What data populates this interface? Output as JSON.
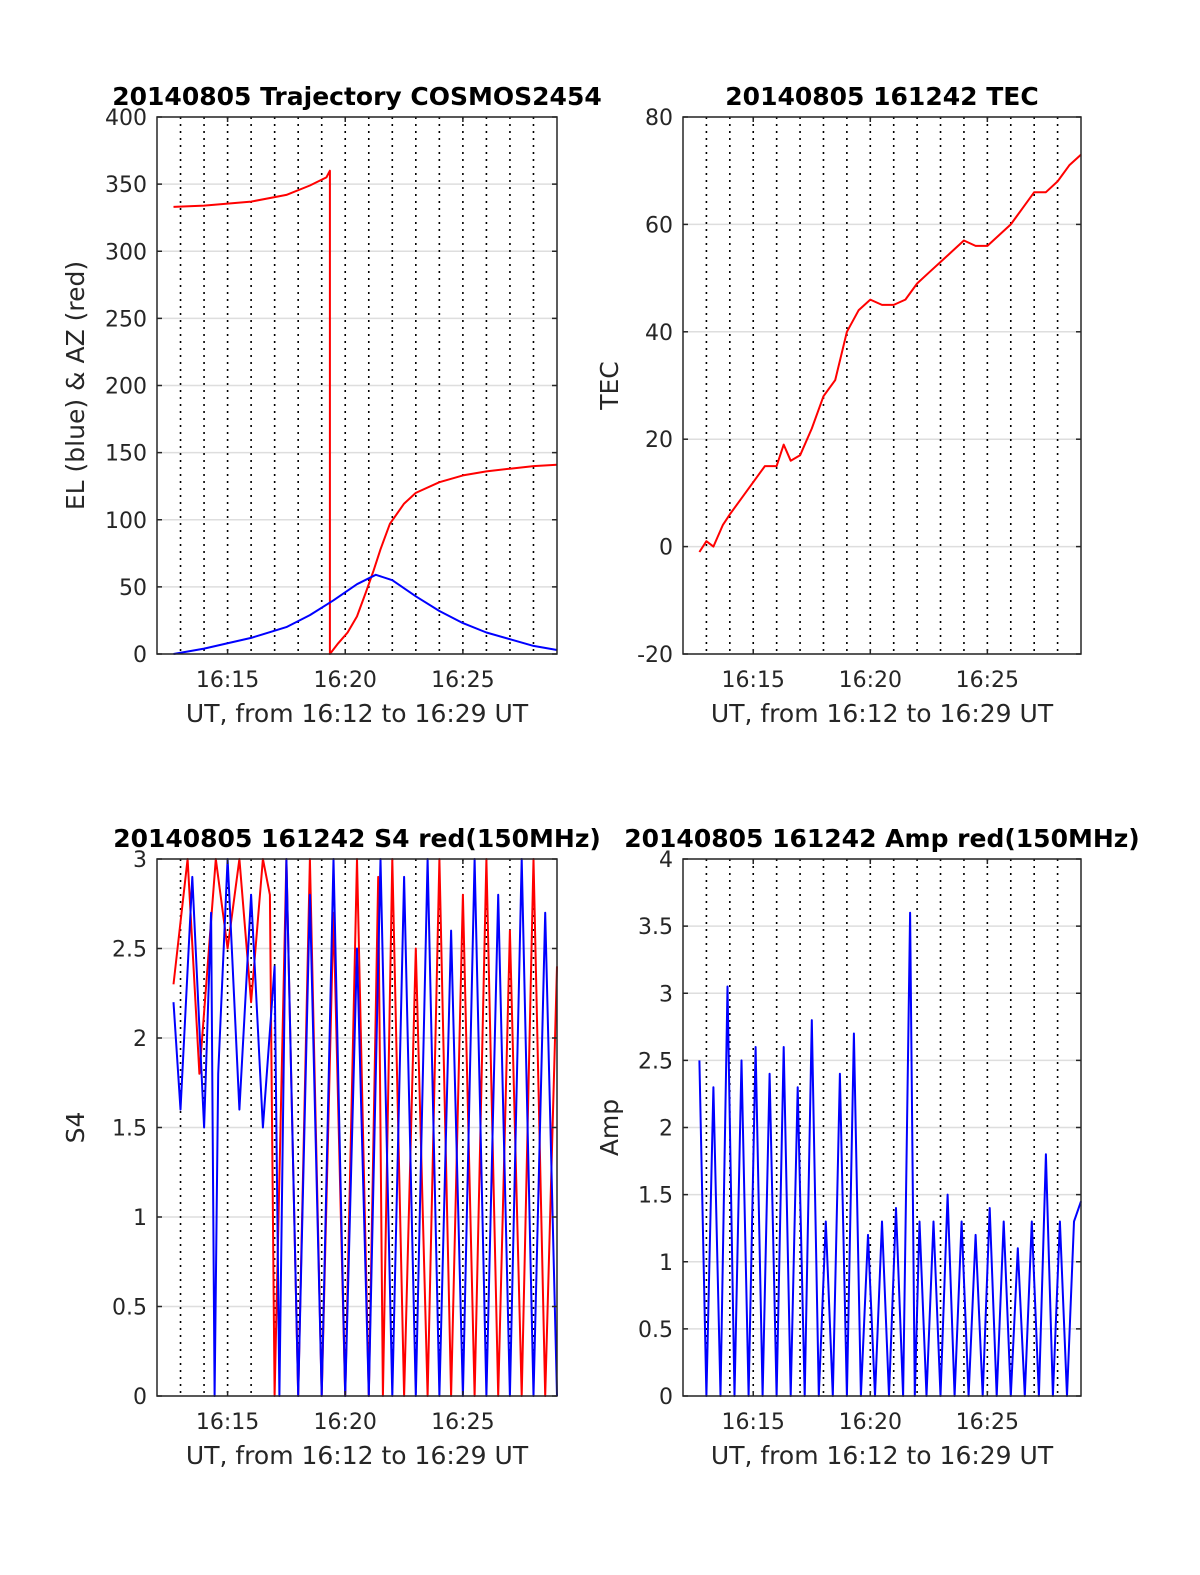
{
  "chart_data": [
    {
      "type": "line",
      "title": "20140805 Trajectory COSMOS2454",
      "xlabel": "UT, from 16:12 to 16:29 UT",
      "ylabel": "EL (blue) & AZ (red)",
      "xlim": [
        16.12,
        16.29
      ],
      "ylim": [
        0,
        400
      ],
      "x_ticks": [
        16.15,
        16.2,
        16.25
      ],
      "x_tick_labels": [
        "16:15",
        "16:20",
        "16:25"
      ],
      "y_ticks": [
        0,
        50,
        100,
        150,
        200,
        250,
        300,
        350,
        400
      ],
      "y_tick_labels": [
        "0",
        "50",
        "100",
        "150",
        "200",
        "250",
        "300",
        "350",
        "400"
      ],
      "grid": true,
      "series": [
        {
          "color": "#ff0000",
          "x": [
            16.127,
            16.14,
            16.16,
            16.175,
            16.185,
            16.192,
            16.1935,
            16.1935,
            16.197,
            16.201,
            16.205,
            16.209,
            16.212,
            16.215,
            16.219,
            16.225,
            16.23,
            16.24,
            16.25,
            16.26,
            16.27,
            16.28,
            16.29
          ],
          "y": [
            333,
            334,
            337,
            342,
            349,
            355,
            360,
            0,
            8,
            16,
            28,
            47,
            62,
            78,
            97,
            112,
            120,
            128,
            133,
            136,
            138,
            140,
            141
          ]
        },
        {
          "color": "#0000ff",
          "x": [
            16.127,
            16.14,
            16.16,
            16.175,
            16.185,
            16.195,
            16.205,
            16.213,
            16.22,
            16.23,
            16.24,
            16.25,
            16.26,
            16.27,
            16.28,
            16.29
          ],
          "y": [
            0,
            4,
            12,
            20,
            29,
            40,
            52,
            59,
            55,
            43,
            32,
            23,
            16,
            11,
            6,
            3
          ]
        }
      ]
    },
    {
      "type": "line",
      "title": "20140805 161242 TEC",
      "xlabel": "UT, from 16:12 to 16:29 UT",
      "ylabel": "TEC",
      "xlim": [
        16.12,
        16.29
      ],
      "ylim": [
        -20,
        80
      ],
      "x_ticks": [
        16.15,
        16.2,
        16.25
      ],
      "x_tick_labels": [
        "16:15",
        "16:20",
        "16:25"
      ],
      "y_ticks": [
        -20,
        0,
        20,
        40,
        60,
        80
      ],
      "y_tick_labels": [
        "-20",
        "0",
        "20",
        "40",
        "60",
        "80"
      ],
      "grid": true,
      "series": [
        {
          "color": "#ff0000",
          "x": [
            16.127,
            16.13,
            16.133,
            16.137,
            16.14,
            16.145,
            16.15,
            16.155,
            16.16,
            16.163,
            16.166,
            16.17,
            16.175,
            16.18,
            16.185,
            16.19,
            16.195,
            16.2,
            16.205,
            16.21,
            16.215,
            16.22,
            16.225,
            16.23,
            16.235,
            16.24,
            16.245,
            16.25,
            16.255,
            16.26,
            16.265,
            16.27,
            16.275,
            16.28,
            16.285,
            16.29
          ],
          "y": [
            -1,
            1,
            0,
            4,
            6,
            9,
            12,
            15,
            15,
            19,
            16,
            17,
            22,
            28,
            31,
            40,
            44,
            46,
            45,
            45,
            46,
            49,
            51,
            53,
            55,
            57,
            56,
            56,
            58,
            60,
            63,
            66,
            66,
            68,
            71,
            73
          ]
        }
      ]
    },
    {
      "type": "line",
      "title": "20140805 161242 S4 red(150MHz)",
      "xlabel": "UT, from 16:12 to 16:29 UT",
      "ylabel": "S4",
      "xlim": [
        16.12,
        16.29
      ],
      "ylim": [
        0,
        3
      ],
      "x_ticks": [
        16.15,
        16.2,
        16.25
      ],
      "x_tick_labels": [
        "16:15",
        "16:20",
        "16:25"
      ],
      "y_ticks": [
        0,
        0.5,
        1,
        1.5,
        2,
        2.5,
        3
      ],
      "y_tick_labels": [
        "0",
        "0.5",
        "1",
        "1.5",
        "2",
        "2.5",
        "3"
      ],
      "grid": true,
      "series": [
        {
          "color": "#ff0000",
          "x": [
            16.127,
            16.133,
            16.138,
            16.145,
            16.15,
            16.155,
            16.16,
            16.165,
            16.168,
            16.17,
            16.175,
            16.18,
            16.185,
            16.19,
            16.195,
            16.2,
            16.205,
            16.21,
            16.214,
            16.216,
            16.22,
            16.225,
            16.23,
            16.235,
            16.24,
            16.245,
            16.25,
            16.255,
            16.26,
            16.265,
            16.27,
            16.275,
            16.28,
            16.285,
            16.29
          ],
          "y": [
            2.3,
            3,
            1.8,
            3,
            2.5,
            3,
            2.2,
            3,
            2.8,
            0,
            3,
            0,
            3,
            0,
            2.7,
            0,
            3,
            0,
            2.9,
            0,
            3,
            0,
            2.5,
            0,
            3,
            0,
            2.8,
            0,
            3,
            0,
            2.6,
            0,
            3,
            0,
            2.4
          ]
        },
        {
          "color": "#0000ff",
          "x": [
            16.127,
            16.13,
            16.135,
            16.14,
            16.143,
            16.1445,
            16.146,
            16.15,
            16.155,
            16.16,
            16.165,
            16.17,
            16.172,
            16.175,
            16.18,
            16.185,
            16.19,
            16.195,
            16.2,
            16.205,
            16.21,
            16.215,
            16.22,
            16.225,
            16.23,
            16.235,
            16.24,
            16.245,
            16.25,
            16.255,
            16.26,
            16.265,
            16.27,
            16.275,
            16.28,
            16.285,
            16.29
          ],
          "y": [
            2.2,
            1.6,
            2.9,
            1.5,
            2.7,
            0,
            1.8,
            3,
            1.6,
            2.8,
            1.5,
            2.4,
            0,
            3,
            0,
            2.8,
            0,
            3,
            0,
            2.5,
            0,
            3,
            0,
            2.9,
            0,
            3,
            0,
            2.6,
            0,
            3,
            0,
            2.8,
            0,
            3,
            0,
            2.7,
            0
          ]
        }
      ]
    },
    {
      "type": "line",
      "title": "20140805 161242 Amp red(150MHz)",
      "xlabel": "UT, from 16:12 to 16:29 UT",
      "ylabel": "Amp",
      "xlim": [
        16.12,
        16.29
      ],
      "ylim": [
        0,
        4
      ],
      "x_ticks": [
        16.15,
        16.2,
        16.25
      ],
      "x_tick_labels": [
        "16:15",
        "16:20",
        "16:25"
      ],
      "y_ticks": [
        0,
        0.5,
        1,
        1.5,
        2,
        2.5,
        3,
        3.5,
        4
      ],
      "y_tick_labels": [
        "0",
        "0.5",
        "1",
        "1.5",
        "2",
        "2.5",
        "3",
        "3.5",
        "4"
      ],
      "grid": true,
      "series": [
        {
          "color": "#0000ff",
          "x": [
            16.127,
            16.13,
            16.133,
            16.136,
            16.139,
            16.142,
            16.145,
            16.148,
            16.151,
            16.154,
            16.157,
            16.16,
            16.163,
            16.166,
            16.169,
            16.172,
            16.175,
            16.178,
            16.181,
            16.184,
            16.187,
            16.19,
            16.193,
            16.196,
            16.199,
            16.202,
            16.205,
            16.208,
            16.211,
            16.214,
            16.217,
            16.219,
            16.221,
            16.224,
            16.227,
            16.23,
            16.233,
            16.236,
            16.239,
            16.242,
            16.245,
            16.248,
            16.251,
            16.254,
            16.257,
            16.26,
            16.263,
            16.266,
            16.269,
            16.272,
            16.275,
            16.278,
            16.281,
            16.284,
            16.287,
            16.29
          ],
          "y": [
            2.5,
            0,
            2.3,
            0,
            3.05,
            0,
            2.5,
            0,
            2.6,
            0,
            2.4,
            0,
            2.6,
            0,
            2.3,
            0,
            2.8,
            0,
            1.3,
            0,
            2.4,
            0,
            2.7,
            0,
            1.2,
            0,
            1.3,
            0,
            1.4,
            0,
            3.6,
            0,
            1.3,
            0,
            1.3,
            0,
            1.5,
            0,
            1.3,
            0,
            1.2,
            0,
            1.4,
            0,
            1.3,
            0,
            1.1,
            0,
            1.3,
            0,
            1.8,
            0,
            1.3,
            0,
            1.3,
            1.45
          ]
        }
      ]
    }
  ]
}
